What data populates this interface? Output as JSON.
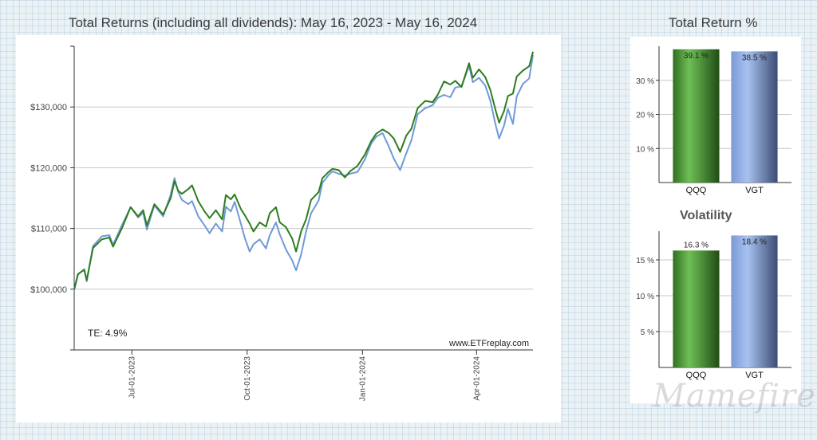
{
  "colors": {
    "qqq": "#2e7d1e",
    "vgt": "#6f9ad8",
    "grid": "#c8c8c8",
    "axis": "#333333"
  },
  "main_title": "Total Returns (including all dividends): May 16, 2023 - May 16, 2024",
  "side_title": "Total Return %",
  "volatility_title": "Volatility",
  "te_label": "TE:  4.9%",
  "source_label": "www.ETFreplay.com",
  "watermark": "Mamefire",
  "chart_data": [
    {
      "type": "line",
      "title": "Total Returns (including all dividends): May 16, 2023 - May 16, 2024",
      "y_ticks": [
        100000,
        110000,
        120000,
        130000
      ],
      "y_tick_labels": [
        "$100,000",
        "$110,000",
        "$120,000",
        "$130,000"
      ],
      "ylim": [
        90000,
        140000
      ],
      "x_range": [
        "2023-05-16",
        "2024-05-16"
      ],
      "x_ticks": [
        "2023-07-01",
        "2023-10-01",
        "2024-01-01",
        "2024-04-01"
      ],
      "x_tick_labels": [
        "Jul-01-2023",
        "Oct-01-2023",
        "Jan-01-2024",
        "Apr-01-2024"
      ],
      "grid": true,
      "annotations": [
        "TE:  4.9%",
        "www.ETFreplay.com"
      ],
      "series": [
        {
          "name": "QQQ",
          "points": [
            [
              "2023-05-16",
              100000
            ],
            [
              "2023-05-19",
              102500
            ],
            [
              "2023-05-24",
              103200
            ],
            [
              "2023-05-26",
              101500
            ],
            [
              "2023-05-31",
              106800
            ],
            [
              "2023-06-07",
              108200
            ],
            [
              "2023-06-13",
              108500
            ],
            [
              "2023-06-16",
              107000
            ],
            [
              "2023-06-23",
              110000
            ],
            [
              "2023-06-30",
              113500
            ],
            [
              "2023-07-06",
              112000
            ],
            [
              "2023-07-10",
              113000
            ],
            [
              "2023-07-13",
              110500
            ],
            [
              "2023-07-19",
              114000
            ],
            [
              "2023-07-26",
              112300
            ],
            [
              "2023-08-01",
              115000
            ],
            [
              "2023-08-04",
              117800
            ],
            [
              "2023-08-07",
              116200
            ],
            [
              "2023-08-10",
              115700
            ],
            [
              "2023-08-15",
              116500
            ],
            [
              "2023-08-18",
              117100
            ],
            [
              "2023-08-23",
              114500
            ],
            [
              "2023-08-28",
              112800
            ],
            [
              "2023-09-01",
              111700
            ],
            [
              "2023-09-06",
              113000
            ],
            [
              "2023-09-11",
              111500
            ],
            [
              "2023-09-14",
              115500
            ],
            [
              "2023-09-18",
              114800
            ],
            [
              "2023-09-21",
              115600
            ],
            [
              "2023-09-26",
              113200
            ],
            [
              "2023-09-29",
              112200
            ],
            [
              "2023-10-03",
              110800
            ],
            [
              "2023-10-06",
              109500
            ],
            [
              "2023-10-11",
              111000
            ],
            [
              "2023-10-16",
              110300
            ],
            [
              "2023-10-19",
              112500
            ],
            [
              "2023-10-24",
              113500
            ],
            [
              "2023-10-27",
              111000
            ],
            [
              "2023-11-01",
              110200
            ],
            [
              "2023-11-06",
              108300
            ],
            [
              "2023-11-09",
              106200
            ],
            [
              "2023-11-13",
              109500
            ],
            [
              "2023-11-17",
              111500
            ],
            [
              "2023-11-21",
              114700
            ],
            [
              "2023-11-27",
              116000
            ],
            [
              "2023-11-30",
              118300
            ],
            [
              "2023-12-05",
              119300
            ],
            [
              "2023-12-08",
              119800
            ],
            [
              "2023-12-13",
              119600
            ],
            [
              "2023-12-18",
              118400
            ],
            [
              "2023-12-22",
              119400
            ],
            [
              "2023-12-28",
              120300
            ],
            [
              "2024-01-03",
              122200
            ],
            [
              "2024-01-08",
              124400
            ],
            [
              "2024-01-12",
              125600
            ],
            [
              "2024-01-17",
              126300
            ],
            [
              "2024-01-22",
              125700
            ],
            [
              "2024-01-26",
              124800
            ],
            [
              "2024-01-31",
              122600
            ],
            [
              "2024-02-05",
              125300
            ],
            [
              "2024-02-09",
              126400
            ],
            [
              "2024-02-14",
              129800
            ],
            [
              "2024-02-20",
              131000
            ],
            [
              "2024-02-26",
              130800
            ],
            [
              "2024-03-01",
              132000
            ],
            [
              "2024-03-06",
              134200
            ],
            [
              "2024-03-11",
              133700
            ],
            [
              "2024-03-15",
              134300
            ],
            [
              "2024-03-20",
              133300
            ],
            [
              "2024-03-26",
              137200
            ],
            [
              "2024-03-29",
              134800
            ],
            [
              "2024-04-03",
              136200
            ],
            [
              "2024-04-08",
              134900
            ],
            [
              "2024-04-12",
              132800
            ],
            [
              "2024-04-16",
              129600
            ],
            [
              "2024-04-19",
              127400
            ],
            [
              "2024-04-23",
              129400
            ],
            [
              "2024-04-26",
              131800
            ],
            [
              "2024-04-30",
              132200
            ],
            [
              "2024-05-03",
              135000
            ],
            [
              "2024-05-08",
              136000
            ],
            [
              "2024-05-13",
              136700
            ],
            [
              "2024-05-16",
              139100
            ]
          ]
        },
        {
          "name": "VGT",
          "points": [
            [
              "2023-05-16",
              99800
            ],
            [
              "2023-05-19",
              102400
            ],
            [
              "2023-05-24",
              103300
            ],
            [
              "2023-05-26",
              101300
            ],
            [
              "2023-05-31",
              107100
            ],
            [
              "2023-06-07",
              108700
            ],
            [
              "2023-06-13",
              108900
            ],
            [
              "2023-06-16",
              107300
            ],
            [
              "2023-06-23",
              110500
            ],
            [
              "2023-06-30",
              113500
            ],
            [
              "2023-07-06",
              111800
            ],
            [
              "2023-07-10",
              112600
            ],
            [
              "2023-07-13",
              109800
            ],
            [
              "2023-07-19",
              113800
            ],
            [
              "2023-07-26",
              112000
            ],
            [
              "2023-08-01",
              115600
            ],
            [
              "2023-08-04",
              118300
            ],
            [
              "2023-08-07",
              116000
            ],
            [
              "2023-08-10",
              114700
            ],
            [
              "2023-08-15",
              114000
            ],
            [
              "2023-08-18",
              114500
            ],
            [
              "2023-08-23",
              112000
            ],
            [
              "2023-08-28",
              110500
            ],
            [
              "2023-09-01",
              109200
            ],
            [
              "2023-09-06",
              110800
            ],
            [
              "2023-09-11",
              109500
            ],
            [
              "2023-09-14",
              113600
            ],
            [
              "2023-09-18",
              112800
            ],
            [
              "2023-09-21",
              114400
            ],
            [
              "2023-09-26",
              110800
            ],
            [
              "2023-09-29",
              108500
            ],
            [
              "2023-10-03",
              106200
            ],
            [
              "2023-10-06",
              107400
            ],
            [
              "2023-10-11",
              108200
            ],
            [
              "2023-10-16",
              106700
            ],
            [
              "2023-10-19",
              108900
            ],
            [
              "2023-10-24",
              111000
            ],
            [
              "2023-10-27",
              109000
            ],
            [
              "2023-11-01",
              106500
            ],
            [
              "2023-11-06",
              104700
            ],
            [
              "2023-11-09",
              103100
            ],
            [
              "2023-11-13",
              105700
            ],
            [
              "2023-11-17",
              109500
            ],
            [
              "2023-11-21",
              112500
            ],
            [
              "2023-11-27",
              114600
            ],
            [
              "2023-11-30",
              117500
            ],
            [
              "2023-12-05",
              118800
            ],
            [
              "2023-12-08",
              119400
            ],
            [
              "2023-12-13",
              119000
            ],
            [
              "2023-12-18",
              118700
            ],
            [
              "2023-12-22",
              119000
            ],
            [
              "2023-12-28",
              119300
            ],
            [
              "2024-01-03",
              121400
            ],
            [
              "2024-01-08",
              124000
            ],
            [
              "2024-01-12",
              125100
            ],
            [
              "2024-01-17",
              125700
            ],
            [
              "2024-01-22",
              123500
            ],
            [
              "2024-01-26",
              121500
            ],
            [
              "2024-01-31",
              119600
            ],
            [
              "2024-02-05",
              122400
            ],
            [
              "2024-02-09",
              124500
            ],
            [
              "2024-02-14",
              128800
            ],
            [
              "2024-02-20",
              129800
            ],
            [
              "2024-02-26",
              130300
            ],
            [
              "2024-03-01",
              131500
            ],
            [
              "2024-03-06",
              132000
            ],
            [
              "2024-03-11",
              131600
            ],
            [
              "2024-03-15",
              133200
            ],
            [
              "2024-03-20",
              133400
            ],
            [
              "2024-03-26",
              136800
            ],
            [
              "2024-03-29",
              134100
            ],
            [
              "2024-04-03",
              134800
            ],
            [
              "2024-04-08",
              133500
            ],
            [
              "2024-04-12",
              131000
            ],
            [
              "2024-04-16",
              127200
            ],
            [
              "2024-04-19",
              124800
            ],
            [
              "2024-04-23",
              127000
            ],
            [
              "2024-04-26",
              129700
            ],
            [
              "2024-04-30",
              127200
            ],
            [
              "2024-05-03",
              131700
            ],
            [
              "2024-05-08",
              133800
            ],
            [
              "2024-05-13",
              134700
            ],
            [
              "2024-05-16",
              138600
            ]
          ]
        }
      ]
    },
    {
      "type": "bar",
      "title": "Total Return %",
      "categories": [
        "QQQ",
        "VGT"
      ],
      "values": [
        39.1,
        38.5
      ],
      "value_labels": [
        "39.1 %",
        "38.5 %"
      ],
      "y_ticks": [
        10,
        20,
        30
      ],
      "y_tick_labels": [
        "10 %",
        "20 %",
        "30 %"
      ],
      "ylim": [
        0,
        40
      ],
      "grid": true
    },
    {
      "type": "bar",
      "title": "Volatility",
      "categories": [
        "QQQ",
        "VGT"
      ],
      "values": [
        16.3,
        18.4
      ],
      "value_labels": [
        "16.3 %",
        "18.4 %"
      ],
      "y_ticks": [
        5,
        10,
        15
      ],
      "y_tick_labels": [
        "5 %",
        "10 %",
        "15 %"
      ],
      "ylim": [
        0,
        19
      ],
      "grid": true
    }
  ]
}
